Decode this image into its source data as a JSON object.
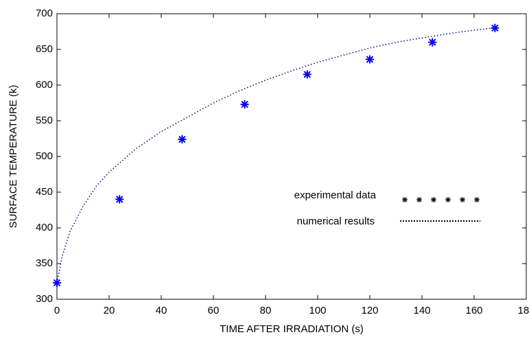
{
  "chart_data": {
    "type": "scatter",
    "xlabel": "TIME AFTER IRRADIATION (s)",
    "ylabel": "SURFACE TEMPERATURE (k)",
    "xlim": [
      0,
      180
    ],
    "xticks": [
      0,
      20,
      40,
      60,
      80,
      100,
      120,
      140,
      160,
      180
    ],
    "ylim": [
      300,
      700
    ],
    "yticks": [
      300,
      350,
      400,
      450,
      500,
      550,
      600,
      650,
      700
    ],
    "grid": false,
    "series": [
      {
        "name": "experimental data",
        "color": "#0000ff",
        "marker": "*",
        "x": [
          0,
          24,
          48,
          72,
          96,
          120,
          144,
          168
        ],
        "values": [
          323,
          440,
          524,
          573,
          615,
          636,
          660,
          680
        ]
      },
      {
        "name": "numerical results",
        "color": "#000080",
        "linestyle": "dotted",
        "x": [
          0,
          2,
          5,
          10,
          15,
          20,
          30,
          40,
          50,
          60,
          70,
          80,
          90,
          100,
          110,
          120,
          130,
          140,
          150,
          160,
          168
        ],
        "values": [
          323,
          360,
          395,
          430,
          458,
          478,
          510,
          535,
          555,
          575,
          592,
          607,
          620,
          632,
          642,
          652,
          660,
          666,
          672,
          677,
          680
        ]
      }
    ]
  }
}
